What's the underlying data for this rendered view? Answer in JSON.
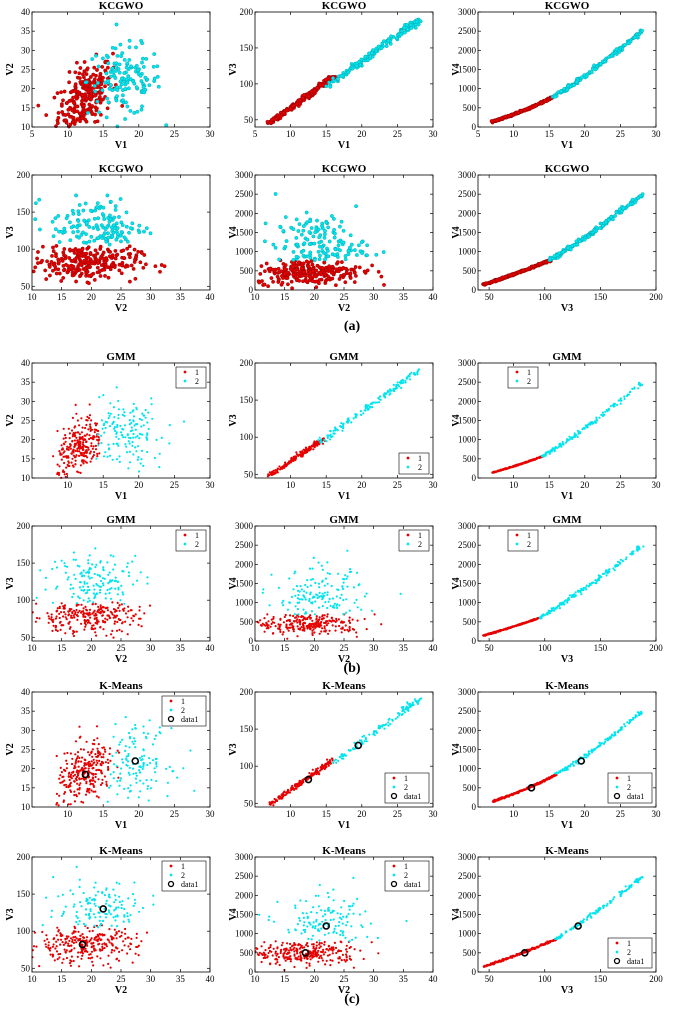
{
  "figure": {
    "labels": [
      "(a)",
      "(b)",
      "(c)"
    ],
    "colors": {
      "cluster1": "#e60000",
      "cluster2": "#00e5ee",
      "centroid": "#000000",
      "axis": "#000000"
    }
  },
  "chart_data": [
    {
      "section": 0,
      "row": 0,
      "col": 0,
      "type": "scatter",
      "title": "KCGWO",
      "xlabel": "V1",
      "ylabel": "V2",
      "xlim": [
        5,
        30
      ],
      "ylim": [
        10,
        40
      ],
      "xticks": [
        5,
        10,
        15,
        20,
        25,
        30
      ],
      "yticks": [
        10,
        15,
        20,
        25,
        30,
        35,
        40
      ],
      "marker": "circle",
      "legend": null,
      "series": [
        {
          "name": "1",
          "cx": 12.5,
          "cy": 18,
          "sx": 1.9,
          "sy": 4.5,
          "r": 0.45,
          "n": 260
        },
        {
          "name": "2",
          "cx": 18,
          "cy": 22,
          "sx": 2.6,
          "sy": 4.5,
          "r": 0.0,
          "n": 140
        }
      ]
    },
    {
      "section": 0,
      "row": 0,
      "col": 1,
      "type": "scatter",
      "title": "KCGWO",
      "xlabel": "V1",
      "ylabel": "V3",
      "xlim": [
        5,
        30
      ],
      "ylim": [
        40,
        200
      ],
      "xticks": [
        5,
        10,
        15,
        20,
        25,
        30
      ],
      "yticks": [
        50,
        100,
        150,
        200
      ],
      "marker": "circle",
      "legend": null,
      "series": [
        {
          "name": "1",
          "line": [
            [
              7,
              45
            ],
            [
              16,
              110
            ]
          ],
          "n": 220
        },
        {
          "name": "2",
          "line": [
            [
              15,
              95
            ],
            [
              28,
              190
            ]
          ],
          "n": 140
        }
      ]
    },
    {
      "section": 0,
      "row": 0,
      "col": 2,
      "type": "scatter",
      "title": "KCGWO",
      "xlabel": "V1",
      "ylabel": "V4",
      "xlim": [
        5,
        30
      ],
      "ylim": [
        0,
        3000
      ],
      "xticks": [
        5,
        10,
        15,
        20,
        25,
        30
      ],
      "yticks": [
        0,
        500,
        1000,
        1500,
        2000,
        2500,
        3000
      ],
      "marker": "circle",
      "legend": null,
      "series": [
        {
          "name": "1",
          "curve": [
            [
              7,
              140
            ],
            [
              11,
              360
            ],
            [
              15.5,
              780
            ]
          ],
          "n": 220
        },
        {
          "name": "2",
          "curve": [
            [
              15.5,
              780
            ],
            [
              21,
              1400
            ],
            [
              28,
              2500
            ]
          ],
          "n": 140
        }
      ]
    },
    {
      "section": 0,
      "row": 1,
      "col": 0,
      "type": "scatter",
      "title": "KCGWO",
      "xlabel": "V2",
      "ylabel": "V3",
      "xlim": [
        10,
        40
      ],
      "ylim": [
        45,
        200
      ],
      "xticks": [
        10,
        15,
        20,
        25,
        30,
        35,
        40
      ],
      "yticks": [
        50,
        100,
        150,
        200
      ],
      "marker": "circle",
      "legend": null,
      "series": [
        {
          "name": "1",
          "cx": 19,
          "cy": 82,
          "sx": 4.5,
          "sy": 12,
          "r": 0.0,
          "n": 260,
          "ymax": 105
        },
        {
          "name": "2",
          "cx": 21,
          "cy": 130,
          "sx": 4,
          "sy": 20,
          "r": 0.0,
          "n": 140,
          "ymin": 105
        }
      ]
    },
    {
      "section": 0,
      "row": 1,
      "col": 1,
      "type": "scatter",
      "title": "KCGWO",
      "xlabel": "V2",
      "ylabel": "V4",
      "xlim": [
        10,
        40
      ],
      "ylim": [
        0,
        3000
      ],
      "xticks": [
        10,
        15,
        20,
        25,
        30,
        35,
        40
      ],
      "yticks": [
        0,
        500,
        1000,
        1500,
        2000,
        2500,
        3000
      ],
      "marker": "circle",
      "legend": null,
      "series": [
        {
          "name": "1",
          "cx": 19,
          "cy": 480,
          "sx": 4.5,
          "sy": 160,
          "r": 0.0,
          "n": 260,
          "ymax": 780
        },
        {
          "name": "2",
          "cx": 21,
          "cy": 1150,
          "sx": 3.8,
          "sy": 380,
          "r": 0.0,
          "n": 140,
          "ymin": 780
        }
      ]
    },
    {
      "section": 0,
      "row": 1,
      "col": 2,
      "type": "scatter",
      "title": "KCGWO",
      "xlabel": "V3",
      "ylabel": "V4",
      "xlim": [
        40,
        200
      ],
      "ylim": [
        0,
        3000
      ],
      "xticks": [
        50,
        100,
        150,
        200
      ],
      "yticks": [
        0,
        500,
        1000,
        1500,
        2000,
        2500,
        3000
      ],
      "marker": "circle",
      "legend": null,
      "series": [
        {
          "name": "1",
          "curve": [
            [
              45,
              140
            ],
            [
              75,
              420
            ],
            [
              105,
              780
            ]
          ],
          "n": 220
        },
        {
          "name": "2",
          "curve": [
            [
              105,
              780
            ],
            [
              145,
              1500
            ],
            [
              188,
              2500
            ]
          ],
          "n": 140
        }
      ]
    },
    {
      "section": 1,
      "row": 0,
      "col": 0,
      "type": "scatter",
      "title": "GMM",
      "xlabel": "V1",
      "ylabel": "V2",
      "xlim": [
        5,
        30
      ],
      "ylim": [
        10,
        40
      ],
      "xticks": [
        10,
        15,
        20,
        25,
        30
      ],
      "yticks": [
        10,
        15,
        20,
        25,
        30,
        35,
        40
      ],
      "marker": "dot",
      "legend": {
        "position": "top-right",
        "entries": [
          "1",
          "2"
        ]
      },
      "series": [
        {
          "name": "1",
          "cx": 11.8,
          "cy": 18,
          "sx": 1.6,
          "sy": 4,
          "r": 0.45,
          "n": 260,
          "xmax": 14.5
        },
        {
          "name": "2",
          "cx": 18,
          "cy": 22,
          "sx": 2.8,
          "sy": 4.5,
          "r": 0.0,
          "n": 150,
          "xmin": 14
        }
      ]
    },
    {
      "section": 1,
      "row": 0,
      "col": 1,
      "type": "scatter",
      "title": "GMM",
      "xlabel": "V1",
      "ylabel": "V3",
      "xlim": [
        5,
        30
      ],
      "ylim": [
        45,
        200
      ],
      "xticks": [
        10,
        15,
        20,
        25,
        30
      ],
      "yticks": [
        50,
        100,
        150,
        200
      ],
      "marker": "dot",
      "legend": {
        "position": "bottom-right",
        "entries": [
          "1",
          "2"
        ]
      },
      "series": [
        {
          "name": "1",
          "line": [
            [
              7,
              48
            ],
            [
              14.5,
              97
            ]
          ],
          "n": 220
        },
        {
          "name": "2",
          "line": [
            [
              14,
              92
            ],
            [
              28,
              190
            ]
          ],
          "n": 150
        }
      ]
    },
    {
      "section": 1,
      "row": 0,
      "col": 2,
      "type": "scatter",
      "title": "GMM",
      "xlabel": "V1",
      "ylabel": "V4",
      "xlim": [
        5,
        30
      ],
      "ylim": [
        0,
        3000
      ],
      "xticks": [
        10,
        15,
        20,
        25,
        30
      ],
      "yticks": [
        0,
        500,
        1000,
        1500,
        2000,
        2500,
        3000
      ],
      "marker": "dot",
      "legend": {
        "position": "top-left",
        "entries": [
          "1",
          "2"
        ]
      },
      "series": [
        {
          "name": "1",
          "curve": [
            [
              7,
              140
            ],
            [
              10.5,
              320
            ],
            [
              14,
              560
            ]
          ],
          "n": 220
        },
        {
          "name": "2",
          "curve": [
            [
              14,
              560
            ],
            [
              20,
              1200
            ],
            [
              28,
              2500
            ]
          ],
          "n": 150
        }
      ]
    },
    {
      "section": 1,
      "row": 1,
      "col": 0,
      "type": "scatter",
      "title": "GMM",
      "xlabel": "V2",
      "ylabel": "V3",
      "xlim": [
        10,
        40
      ],
      "ylim": [
        45,
        200
      ],
      "xticks": [
        10,
        15,
        20,
        25,
        30,
        35,
        40
      ],
      "yticks": [
        50,
        100,
        150,
        200
      ],
      "marker": "dot",
      "legend": {
        "position": "top-right",
        "entries": [
          "1",
          "2"
        ]
      },
      "series": [
        {
          "name": "1",
          "cx": 19,
          "cy": 78,
          "sx": 4.5,
          "sy": 11,
          "r": 0.0,
          "n": 260,
          "ymax": 98
        },
        {
          "name": "2",
          "cx": 21,
          "cy": 125,
          "sx": 4,
          "sy": 20,
          "r": 0.0,
          "n": 150,
          "ymin": 95
        }
      ]
    },
    {
      "section": 1,
      "row": 1,
      "col": 1,
      "type": "scatter",
      "title": "GMM",
      "xlabel": "V2",
      "ylabel": "V4",
      "xlim": [
        10,
        40
      ],
      "ylim": [
        0,
        3000
      ],
      "xticks": [
        10,
        15,
        20,
        25,
        30,
        35,
        40
      ],
      "yticks": [
        0,
        500,
        1000,
        1500,
        2000,
        2500,
        3000
      ],
      "marker": "dot",
      "legend": {
        "position": "top-right",
        "entries": [
          "1",
          "2"
        ]
      },
      "series": [
        {
          "name": "1",
          "cx": 19,
          "cy": 450,
          "sx": 4.5,
          "sy": 140,
          "r": 0.0,
          "n": 260,
          "ymax": 700
        },
        {
          "name": "2",
          "cx": 21,
          "cy": 1100,
          "sx": 3.8,
          "sy": 380,
          "r": 0.0,
          "n": 150,
          "ymin": 650
        }
      ]
    },
    {
      "section": 1,
      "row": 1,
      "col": 2,
      "type": "scatter",
      "title": "GMM",
      "xlabel": "V3",
      "ylabel": "V4",
      "xlim": [
        40,
        200
      ],
      "ylim": [
        0,
        3000
      ],
      "xticks": [
        50,
        100,
        150,
        200
      ],
      "yticks": [
        0,
        500,
        1000,
        1500,
        2000,
        2500,
        3000
      ],
      "marker": "dot",
      "legend": {
        "position": "top-left",
        "entries": [
          "1",
          "2"
        ]
      },
      "series": [
        {
          "name": "1",
          "curve": [
            [
              45,
              140
            ],
            [
              70,
              350
            ],
            [
              95,
              600
            ]
          ],
          "n": 220
        },
        {
          "name": "2",
          "curve": [
            [
              95,
              600
            ],
            [
              140,
              1400
            ],
            [
              188,
              2500
            ]
          ],
          "n": 150
        }
      ]
    },
    {
      "section": 2,
      "row": 0,
      "col": 0,
      "type": "scatter",
      "title": "K-Means",
      "xlabel": "V1",
      "ylabel": "V2",
      "xlim": [
        5,
        30
      ],
      "ylim": [
        10,
        40
      ],
      "xticks": [
        10,
        15,
        20,
        25,
        30
      ],
      "yticks": [
        10,
        15,
        20,
        25,
        30,
        35,
        40
      ],
      "marker": "dot",
      "legend": {
        "position": "top-right",
        "entries": [
          "1",
          "2",
          "data1"
        ]
      },
      "centroids": [
        [
          12.5,
          18.5
        ],
        [
          19.5,
          22
        ]
      ],
      "series": [
        {
          "name": "1",
          "cx": 12.5,
          "cy": 18.5,
          "sx": 2,
          "sy": 4.5,
          "r": 0.45,
          "n": 280
        },
        {
          "name": "2",
          "cx": 19.5,
          "cy": 22,
          "sx": 2.6,
          "sy": 4.5,
          "r": 0.0,
          "n": 130,
          "xmin": 15.5
        }
      ]
    },
    {
      "section": 2,
      "row": 0,
      "col": 1,
      "type": "scatter",
      "title": "K-Means",
      "xlabel": "V1",
      "ylabel": "V3",
      "xlim": [
        5,
        30
      ],
      "ylim": [
        45,
        200
      ],
      "xticks": [
        10,
        15,
        20,
        25,
        30
      ],
      "yticks": [
        50,
        100,
        150,
        200
      ],
      "marker": "dot",
      "legend": {
        "position": "bottom-right",
        "entries": [
          "1",
          "2",
          "data1"
        ]
      },
      "centroids": [
        [
          12.5,
          82
        ],
        [
          19.5,
          128
        ]
      ],
      "series": [
        {
          "name": "1",
          "line": [
            [
              7,
              48
            ],
            [
              16,
              108
            ]
          ],
          "n": 230
        },
        {
          "name": "2",
          "line": [
            [
              16,
              105
            ],
            [
              28,
              190
            ]
          ],
          "n": 130
        }
      ]
    },
    {
      "section": 2,
      "row": 0,
      "col": 2,
      "type": "scatter",
      "title": "K-Means",
      "xlabel": "V1",
      "ylabel": "V4",
      "xlim": [
        5,
        30
      ],
      "ylim": [
        0,
        3000
      ],
      "xticks": [
        10,
        15,
        20,
        25,
        30
      ],
      "yticks": [
        0,
        500,
        1000,
        1500,
        2000,
        2500,
        3000
      ],
      "marker": "dot",
      "legend": {
        "position": "bottom-right",
        "entries": [
          "1",
          "2",
          "data1"
        ]
      },
      "centroids": [
        [
          12.5,
          500
        ],
        [
          19.5,
          1200
        ]
      ],
      "series": [
        {
          "name": "1",
          "curve": [
            [
              7,
              140
            ],
            [
              12,
              450
            ],
            [
              16,
              850
            ]
          ],
          "n": 230
        },
        {
          "name": "2",
          "curve": [
            [
              16,
              850
            ],
            [
              21,
              1400
            ],
            [
              28,
              2500
            ]
          ],
          "n": 130
        }
      ]
    },
    {
      "section": 2,
      "row": 1,
      "col": 0,
      "type": "scatter",
      "title": "K-Means",
      "xlabel": "V2",
      "ylabel": "V3",
      "xlim": [
        10,
        40
      ],
      "ylim": [
        45,
        200
      ],
      "xticks": [
        10,
        15,
        20,
        25,
        30,
        35,
        40
      ],
      "yticks": [
        50,
        100,
        150,
        200
      ],
      "marker": "dot",
      "legend": {
        "position": "top-right",
        "entries": [
          "1",
          "2",
          "data1"
        ]
      },
      "centroids": [
        [
          18.5,
          82
        ],
        [
          22,
          130
        ]
      ],
      "series": [
        {
          "name": "1",
          "cx": 18.5,
          "cy": 82,
          "sx": 4.5,
          "sy": 12,
          "r": 0.0,
          "n": 280,
          "ymax": 108
        },
        {
          "name": "2",
          "cx": 22,
          "cy": 130,
          "sx": 4,
          "sy": 20,
          "r": 0.0,
          "n": 130,
          "ymin": 105
        }
      ]
    },
    {
      "section": 2,
      "row": 1,
      "col": 1,
      "type": "scatter",
      "title": "K-Means",
      "xlabel": "V2",
      "ylabel": "V4",
      "xlim": [
        10,
        40
      ],
      "ylim": [
        0,
        3000
      ],
      "xticks": [
        10,
        15,
        20,
        25,
        30,
        35,
        40
      ],
      "yticks": [
        0,
        500,
        1000,
        1500,
        2000,
        2500,
        3000
      ],
      "marker": "dot",
      "legend": {
        "position": "top-right",
        "entries": [
          "1",
          "2",
          "data1"
        ]
      },
      "centroids": [
        [
          18.5,
          500
        ],
        [
          22,
          1200
        ]
      ],
      "series": [
        {
          "name": "1",
          "cx": 18.5,
          "cy": 500,
          "sx": 4.5,
          "sy": 160,
          "r": 0.0,
          "n": 280,
          "ymax": 800
        },
        {
          "name": "2",
          "cx": 22,
          "cy": 1200,
          "sx": 3.8,
          "sy": 380,
          "r": 0.0,
          "n": 130,
          "ymin": 800
        }
      ]
    },
    {
      "section": 2,
      "row": 1,
      "col": 2,
      "type": "scatter",
      "title": "K-Means",
      "xlabel": "V3",
      "ylabel": "V4",
      "xlim": [
        40,
        200
      ],
      "ylim": [
        0,
        3000
      ],
      "xticks": [
        50,
        100,
        150,
        200
      ],
      "yticks": [
        0,
        500,
        1000,
        1500,
        2000,
        2500,
        3000
      ],
      "marker": "dot",
      "legend": {
        "position": "bottom-right",
        "entries": [
          "1",
          "2",
          "data1"
        ]
      },
      "centroids": [
        [
          82,
          500
        ],
        [
          130,
          1200
        ]
      ],
      "series": [
        {
          "name": "1",
          "curve": [
            [
              45,
              140
            ],
            [
              80,
              480
            ],
            [
              110,
              850
            ]
          ],
          "n": 230
        },
        {
          "name": "2",
          "curve": [
            [
              110,
              850
            ],
            [
              150,
              1600
            ],
            [
              188,
              2500
            ]
          ],
          "n": 130
        }
      ]
    }
  ]
}
